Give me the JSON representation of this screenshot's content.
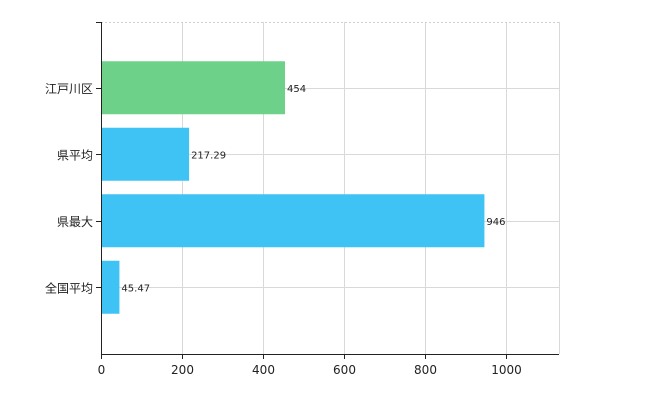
{
  "chart_data": {
    "type": "bar",
    "orientation": "horizontal",
    "categories": [
      "江戸川区",
      "県平均",
      "県最大",
      "全国平均"
    ],
    "values": [
      454,
      217.29,
      946,
      45.47
    ],
    "value_labels": [
      "454",
      "217.29",
      "946",
      "45.47"
    ],
    "bar_colors": [
      "#6dd18a",
      "#3fc3f5",
      "#3fc3f5",
      "#3fc3f5"
    ],
    "xlim": [
      0,
      1130
    ],
    "xticks": [
      0,
      200,
      400,
      600,
      800,
      1000
    ],
    "xtick_labels": [
      "0",
      "200",
      "400",
      "600",
      "800",
      "1000"
    ],
    "grid": true,
    "legend": "none",
    "title": "",
    "xlabel": "",
    "ylabel": ""
  }
}
